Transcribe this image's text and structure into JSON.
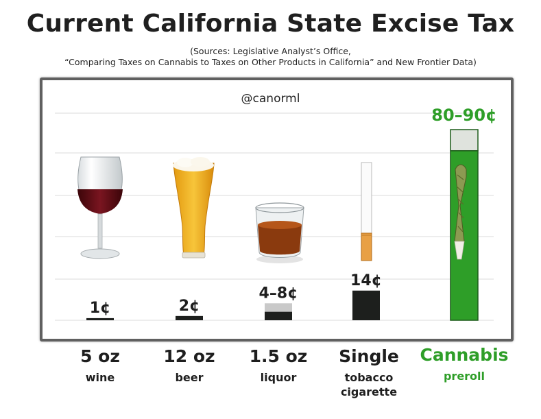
{
  "header": {
    "title": "Current California State Excise Tax",
    "source_line1": "(Sources: Legislative Analyst’s Office,",
    "source_line2": "“Comparing Taxes on Cannabis to Taxes on Other Products in California” and New Frontier Data)"
  },
  "chart_data": {
    "type": "bar",
    "handle": "@canorml",
    "categories": [
      "5 oz wine",
      "12 oz beer",
      "1.5 oz liquor",
      "Single tobacco cigarette",
      "Cannabis preroll"
    ],
    "category_lines": [
      {
        "main": "5 oz",
        "sub": [
          "wine"
        ]
      },
      {
        "main": "12 oz",
        "sub": [
          "beer"
        ]
      },
      {
        "main": "1.5 oz",
        "sub": [
          "liquor"
        ]
      },
      {
        "main": "Single",
        "sub": [
          "tobacco",
          "cigarette"
        ]
      },
      {
        "main": "Cannabis",
        "sub": [
          "preroll"
        ]
      }
    ],
    "values_cents": [
      {
        "low": 1,
        "high": 1
      },
      {
        "low": 2,
        "high": 2
      },
      {
        "low": 4,
        "high": 8
      },
      {
        "low": 14,
        "high": 14
      },
      {
        "low": 80,
        "high": 90
      }
    ],
    "data_labels": [
      "1¢",
      "2¢",
      "4–8¢",
      "14¢",
      "80–90¢"
    ],
    "unit": "cents",
    "ylim": [
      0,
      90
    ],
    "grid": true,
    "highlight_index": 4,
    "icons": [
      "wine-glass-icon",
      "beer-glass-icon",
      "liquor-glass-icon",
      "cigarette-icon",
      "preroll-icon"
    ],
    "colors": {
      "bar": "#1d1f1d",
      "range": "#c9c9c9",
      "cannabis": "#2e9e28",
      "cannabis_range": "#dfe3dd",
      "grid": "#e7e7e7",
      "label_green": "#2e9e28"
    }
  }
}
